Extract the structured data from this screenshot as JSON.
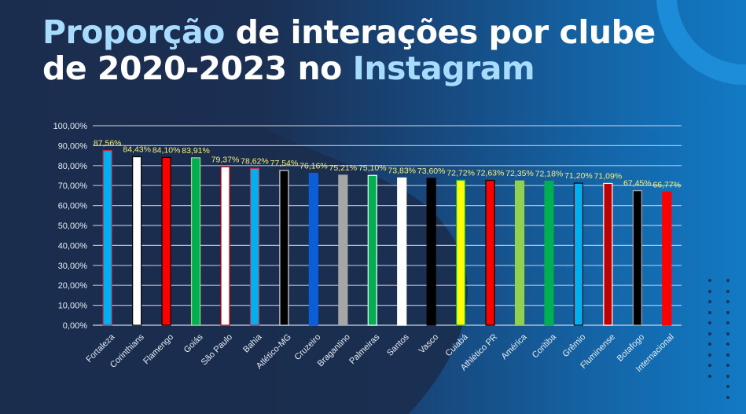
{
  "title": {
    "line1_highlight": "Proporção",
    "line1_rest": " de interações por clube",
    "line2_start": "de 2020-2023 no ",
    "line2_highlight": "Instagram"
  },
  "colors": {
    "title_highlight": "#a8dcff",
    "data_label": "#f4f17a",
    "axis_text": "#e6ecf5",
    "gridline": "#c9d3e2"
  },
  "chart_data": {
    "type": "bar",
    "title": "Proporção de interações por clube de 2020-2023 no Instagram",
    "xlabel": "",
    "ylabel": "",
    "ylim": [
      0,
      100
    ],
    "grid": true,
    "legend": "none",
    "yticks": [
      "0,00%",
      "10,00%",
      "20,00%",
      "30,00%",
      "40,00%",
      "50,00%",
      "60,00%",
      "70,00%",
      "80,00%",
      "90,00%",
      "100,00%"
    ],
    "categories": [
      "Fortaleza",
      "Corinthians",
      "Flamengo",
      "Goiás",
      "São Paulo",
      "Bahia",
      "Atlético-MG",
      "Cruzeiro",
      "Bragantino",
      "Palmeiras",
      "Santos",
      "Vasco",
      "Cuiabá",
      "Athlético PR",
      "América",
      "Coritiba",
      "Grêmio",
      "Fluminense",
      "Botafogo",
      "Internacional"
    ],
    "values": [
      87.56,
      84.43,
      84.1,
      83.91,
      79.37,
      78.62,
      77.54,
      76.16,
      75.21,
      75.1,
      73.83,
      73.6,
      72.72,
      72.63,
      72.35,
      72.18,
      71.2,
      71.09,
      67.45,
      66.77
    ],
    "data_labels": [
      "87,56%",
      "84,43%",
      "84,10%",
      "83,91%",
      "79,37%",
      "78,62%",
      "77,54%",
      "76,16%",
      "75,21%",
      "75,10%",
      "73,83%",
      "73,60%",
      "72,72%",
      "72,63%",
      "72,35%",
      "72,18%",
      "71,20%",
      "71,09%",
      "67,45%",
      "66,77%"
    ],
    "bar_fill": [
      "#00b0f0",
      "#ffffff",
      "#ff0000",
      "#00b050",
      "#ffffff",
      "#00b0f0",
      "#000000",
      "#0b5ed7",
      "#a6a6a6",
      "#00b050",
      "#ffffff",
      "#000000",
      "#ffff00",
      "#ff0000",
      "#92d050",
      "#00b050",
      "#00b0f0",
      "#c00000",
      "#000000",
      "#ff0000"
    ],
    "bar_border": [
      "#c0304a",
      "#000000",
      "#000000",
      "#a9d18e",
      "#c00000",
      "#c0304a",
      "#d9d9d9",
      "#0b5ed7",
      "#a6a6a6",
      "#ffffff",
      "#ffffff",
      "#000000",
      "#00b050",
      "#000000",
      "#92d050",
      "#00b050",
      "#000000",
      "#ffffff",
      "#a6a6a6",
      "#ff0000"
    ]
  }
}
